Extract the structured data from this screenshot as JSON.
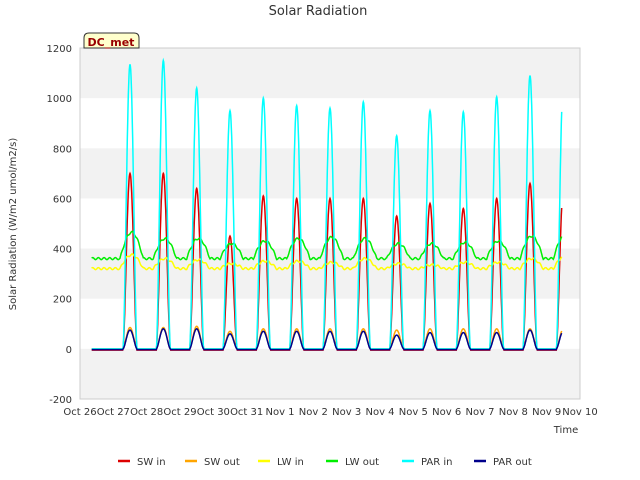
{
  "chart_data": {
    "type": "line",
    "title": "Solar Radiation",
    "xlabel": "Time",
    "ylabel": "Solar Radiation (W/m2 umol/m2/s)",
    "badge": "DC_met",
    "ylim": [
      -200,
      1200
    ],
    "yticks": [
      -200,
      0,
      200,
      400,
      600,
      800,
      1000,
      1200
    ],
    "xlim_days": [
      0,
      15
    ],
    "xtick_labels": [
      "Oct 26",
      "Oct 27",
      "Oct 28",
      "Oct 29",
      "Oct 30",
      "Oct 31",
      "Nov 1",
      "Nov 2",
      "Nov 3",
      "Nov 4",
      "Nov 5",
      "Nov 6",
      "Nov 7",
      "Nov 8",
      "Nov 9",
      "Nov 10"
    ],
    "grid": "horizontal bands",
    "legend_position": "bottom",
    "days": [
      "Oct 27",
      "Oct 28",
      "Oct 29",
      "Oct 30",
      "Oct 31",
      "Nov 1",
      "Nov 2",
      "Nov 3",
      "Nov 4",
      "Nov 5",
      "Nov 6",
      "Nov 7",
      "Nov 8",
      "Nov 9"
    ],
    "series": [
      {
        "name": "SW in",
        "color": "#dd0000",
        "daily_peak": [
          700,
          700,
          640,
          450,
          610,
          600,
          600,
          600,
          530,
          580,
          560,
          600,
          660,
          630
        ],
        "night": -5
      },
      {
        "name": "SW out",
        "color": "#ffa500",
        "daily_peak": [
          85,
          85,
          90,
          70,
          80,
          80,
          80,
          80,
          75,
          80,
          80,
          80,
          80,
          80
        ],
        "night": 0
      },
      {
        "name": "LW in",
        "color": "#ffff00",
        "daily_peak": [
          375,
          360,
          355,
          340,
          350,
          350,
          345,
          360,
          340,
          335,
          345,
          345,
          360,
          370
        ],
        "night": 320
      },
      {
        "name": "LW out",
        "color": "#00ee00",
        "daily_peak": [
          465,
          440,
          440,
          420,
          430,
          440,
          445,
          440,
          420,
          420,
          425,
          430,
          450,
          455
        ],
        "night": 360
      },
      {
        "name": "PAR in",
        "color": "#00ffff",
        "daily_peak": [
          1135,
          1150,
          1040,
          950,
          1000,
          970,
          960,
          985,
          850,
          950,
          945,
          1005,
          1090,
          1060
        ],
        "night": 0
      },
      {
        "name": "PAR out",
        "color": "#00008b",
        "daily_peak": [
          75,
          80,
          80,
          60,
          70,
          70,
          70,
          70,
          55,
          65,
          65,
          65,
          75,
          70
        ],
        "night": -3
      }
    ]
  }
}
